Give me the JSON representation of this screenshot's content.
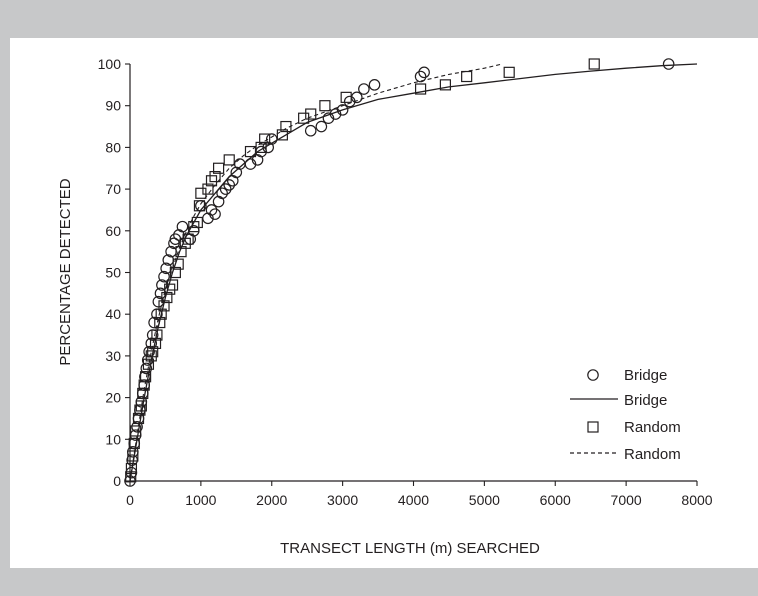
{
  "chart_data": {
    "type": "scatter",
    "title": "",
    "xlabel": "TRANSECT LENGTH (m) SEARCHED",
    "ylabel": "PERCENTAGE DETECTED",
    "xlim": [
      0,
      8000
    ],
    "ylim": [
      0,
      100
    ],
    "xticks": [
      0,
      1000,
      2000,
      3000,
      4000,
      5000,
      6000,
      7000,
      8000
    ],
    "yticks": [
      0,
      10,
      20,
      30,
      40,
      50,
      60,
      70,
      80,
      90,
      100
    ],
    "grid": false,
    "legend_position": "bottom-right",
    "legend": [
      {
        "label": "Bridge",
        "marker": "circle"
      },
      {
        "label": "Bridge",
        "line": "solid"
      },
      {
        "label": "Random",
        "marker": "square"
      },
      {
        "label": "Random",
        "line": "dashed"
      }
    ],
    "series": [
      {
        "name": "Bridge",
        "kind": "points",
        "marker": "circle",
        "points": [
          [
            0,
            0
          ],
          [
            20,
            2
          ],
          [
            30,
            5
          ],
          [
            40,
            7
          ],
          [
            60,
            9
          ],
          [
            80,
            11
          ],
          [
            100,
            13
          ],
          [
            120,
            15
          ],
          [
            140,
            17
          ],
          [
            160,
            19
          ],
          [
            180,
            21
          ],
          [
            200,
            23
          ],
          [
            210,
            25
          ],
          [
            230,
            27
          ],
          [
            250,
            29
          ],
          [
            270,
            31
          ],
          [
            300,
            33
          ],
          [
            320,
            35
          ],
          [
            340,
            38
          ],
          [
            380,
            40
          ],
          [
            400,
            43
          ],
          [
            430,
            45
          ],
          [
            450,
            47
          ],
          [
            480,
            49
          ],
          [
            510,
            51
          ],
          [
            540,
            53
          ],
          [
            580,
            55
          ],
          [
            620,
            57
          ],
          [
            640,
            58
          ],
          [
            690,
            59
          ],
          [
            740,
            61
          ],
          [
            850,
            58
          ],
          [
            900,
            60
          ],
          [
            1000,
            66
          ],
          [
            1100,
            63
          ],
          [
            1150,
            65
          ],
          [
            1200,
            64
          ],
          [
            1250,
            67
          ],
          [
            1300,
            69
          ],
          [
            1350,
            70
          ],
          [
            1400,
            71
          ],
          [
            1450,
            72
          ],
          [
            1500,
            74
          ],
          [
            1550,
            76
          ],
          [
            1700,
            76
          ],
          [
            1800,
            77
          ],
          [
            1850,
            79
          ],
          [
            1950,
            80
          ],
          [
            2000,
            82
          ],
          [
            2550,
            84
          ],
          [
            2700,
            85
          ],
          [
            2800,
            87
          ],
          [
            2900,
            88
          ],
          [
            3000,
            89
          ],
          [
            3100,
            91
          ],
          [
            3200,
            92
          ],
          [
            3300,
            94
          ],
          [
            3450,
            95
          ],
          [
            4100,
            97
          ],
          [
            4150,
            98
          ],
          [
            7600,
            100
          ]
        ]
      },
      {
        "name": "Bridge",
        "kind": "line",
        "style": "solid",
        "points": [
          [
            0,
            0
          ],
          [
            100,
            10
          ],
          [
            200,
            20
          ],
          [
            300,
            29
          ],
          [
            400,
            37
          ],
          [
            500,
            44
          ],
          [
            600,
            50
          ],
          [
            700,
            55
          ],
          [
            800,
            59
          ],
          [
            900,
            62
          ],
          [
            1000,
            65
          ],
          [
            1200,
            69
          ],
          [
            1400,
            73
          ],
          [
            1600,
            76
          ],
          [
            1800,
            79
          ],
          [
            2000,
            81
          ],
          [
            2200,
            83
          ],
          [
            2500,
            86
          ],
          [
            3000,
            89
          ],
          [
            3500,
            91.5
          ],
          [
            4000,
            93
          ],
          [
            4500,
            94.5
          ],
          [
            5000,
            95.5
          ],
          [
            5500,
            96.5
          ],
          [
            6000,
            97.5
          ],
          [
            6500,
            98.3
          ],
          [
            7000,
            99
          ],
          [
            7500,
            99.6
          ],
          [
            8000,
            100
          ]
        ]
      },
      {
        "name": "Random",
        "kind": "points",
        "marker": "square",
        "points": [
          [
            10,
            1
          ],
          [
            20,
            3
          ],
          [
            40,
            6
          ],
          [
            60,
            9
          ],
          [
            80,
            12
          ],
          [
            120,
            15
          ],
          [
            140,
            17
          ],
          [
            160,
            18
          ],
          [
            180,
            21
          ],
          [
            200,
            23
          ],
          [
            220,
            25
          ],
          [
            260,
            28
          ],
          [
            300,
            30
          ],
          [
            320,
            31
          ],
          [
            360,
            33
          ],
          [
            380,
            35
          ],
          [
            420,
            38
          ],
          [
            440,
            40
          ],
          [
            480,
            42
          ],
          [
            520,
            44
          ],
          [
            560,
            46
          ],
          [
            600,
            47
          ],
          [
            640,
            50
          ],
          [
            680,
            52
          ],
          [
            720,
            55
          ],
          [
            780,
            57
          ],
          [
            820,
            58
          ],
          [
            900,
            61
          ],
          [
            950,
            62
          ],
          [
            980,
            66
          ],
          [
            1000,
            69
          ],
          [
            1100,
            70
          ],
          [
            1150,
            72
          ],
          [
            1200,
            73
          ],
          [
            1250,
            75
          ],
          [
            1400,
            77
          ],
          [
            1700,
            79
          ],
          [
            1850,
            80
          ],
          [
            1900,
            82
          ],
          [
            2150,
            83
          ],
          [
            2200,
            85
          ],
          [
            2450,
            87
          ],
          [
            2550,
            88
          ],
          [
            2750,
            90
          ],
          [
            3050,
            92
          ],
          [
            4100,
            94
          ],
          [
            4450,
            95
          ],
          [
            4750,
            97
          ],
          [
            5350,
            98
          ],
          [
            6550,
            100
          ]
        ]
      },
      {
        "name": "Random",
        "kind": "line",
        "style": "dashed",
        "points": [
          [
            0,
            0
          ],
          [
            100,
            11
          ],
          [
            200,
            22
          ],
          [
            300,
            31
          ],
          [
            400,
            39
          ],
          [
            500,
            46
          ],
          [
            600,
            51
          ],
          [
            700,
            56
          ],
          [
            800,
            60
          ],
          [
            900,
            63.5
          ],
          [
            1000,
            66.5
          ],
          [
            1200,
            71
          ],
          [
            1400,
            75
          ],
          [
            1600,
            78
          ],
          [
            1800,
            80.5
          ],
          [
            2000,
            82.5
          ],
          [
            2200,
            84.5
          ],
          [
            2500,
            87
          ],
          [
            3000,
            90
          ],
          [
            3500,
            93
          ],
          [
            4000,
            95.5
          ],
          [
            4500,
            97.5
          ],
          [
            5000,
            99
          ],
          [
            5250,
            100
          ]
        ]
      }
    ]
  },
  "colors": {
    "background": "#c7c8c9",
    "panel": "#ffffff",
    "ink": "#231f20"
  }
}
